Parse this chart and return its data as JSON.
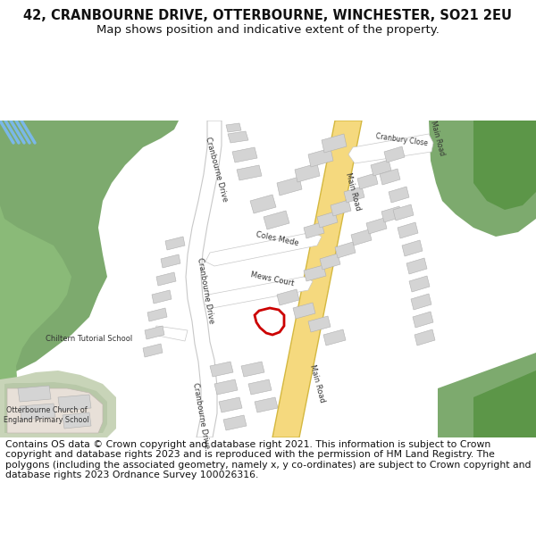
{
  "title_line1": "42, CRANBOURNE DRIVE, OTTERBOURNE, WINCHESTER, SO21 2EU",
  "title_line2": "Map shows position and indicative extent of the property.",
  "footer_text": "Contains OS data © Crown copyright and database right 2021. This information is subject to Crown copyright and database rights 2023 and is reproduced with the permission of HM Land Registry. The polygons (including the associated geometry, namely x, y co-ordinates) are subject to Crown copyright and database rights 2023 Ordnance Survey 100026316.",
  "bg_color": "#ffffff",
  "map_bg": "#f5f5f3",
  "green1": "#7daa6e",
  "green2": "#5c9648",
  "green3": "#8aba78",
  "road_yellow": "#f5d97e",
  "road_outline": "#d4b840",
  "building_color": "#d4d4d4",
  "building_outline": "#b0b0b0",
  "road_white": "#ffffff",
  "road_gray": "#c8c8c8",
  "text_color": "#333333",
  "red_plot": "#cc0000",
  "blue_water": "#a8d0f0",
  "title_fontsize": 10.5,
  "subtitle_fontsize": 9.5,
  "footer_fontsize": 7.8
}
